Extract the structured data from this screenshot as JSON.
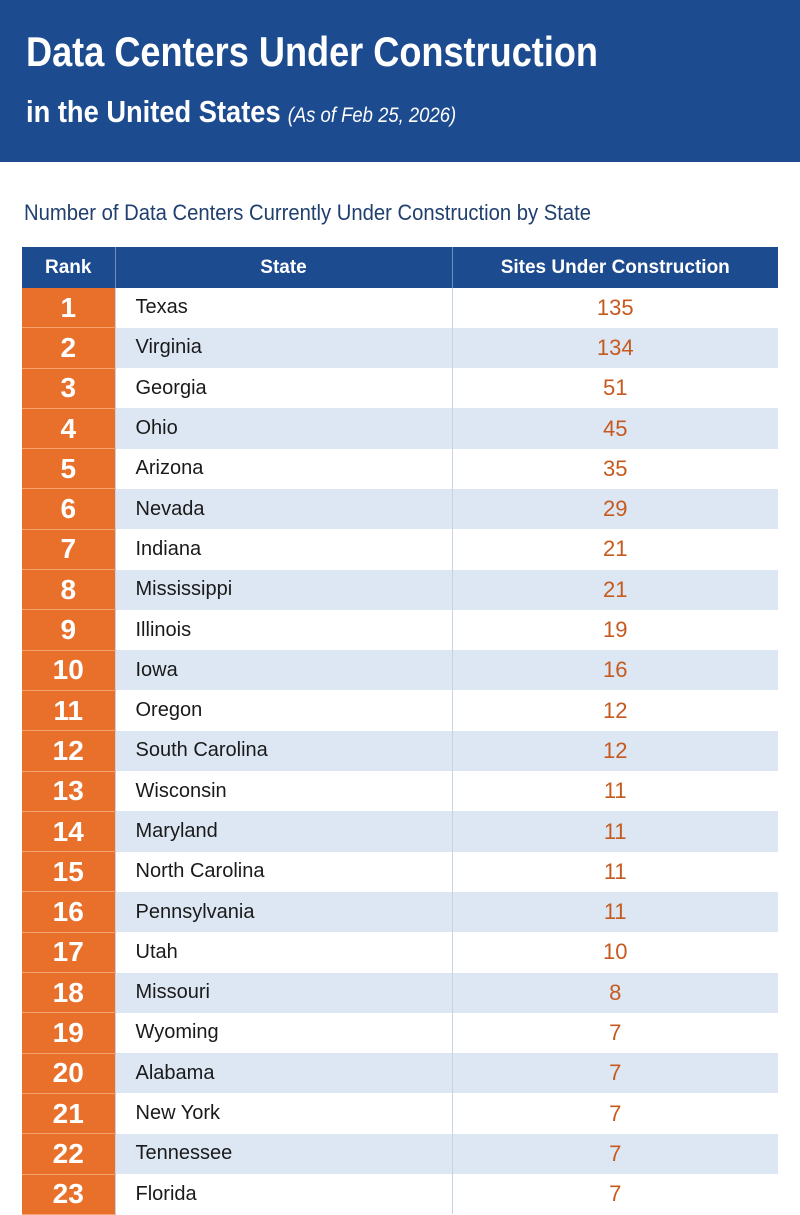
{
  "header": {
    "title": "Data Centers Under Construction",
    "subtitle": "in the United States",
    "date_note": "(As of Feb 25, 2026)"
  },
  "table": {
    "caption": "Number of Data Centers Currently Under Construction by State",
    "columns": [
      "Rank",
      "State",
      "Sites Under Construction"
    ],
    "rows": [
      [
        1,
        "Texas",
        135
      ],
      [
        2,
        "Virginia",
        134
      ],
      [
        3,
        "Georgia",
        51
      ],
      [
        4,
        "Ohio",
        45
      ],
      [
        5,
        "Arizona",
        35
      ],
      [
        6,
        "Nevada",
        29
      ],
      [
        7,
        "Indiana",
        21
      ],
      [
        8,
        "Mississippi",
        21
      ],
      [
        9,
        "Illinois",
        19
      ],
      [
        10,
        "Iowa",
        16
      ],
      [
        11,
        "Oregon",
        12
      ],
      [
        12,
        "South Carolina",
        12
      ],
      [
        13,
        "Wisconsin",
        11
      ],
      [
        14,
        "Maryland",
        11
      ],
      [
        15,
        "North Carolina",
        11
      ],
      [
        16,
        "Pennsylvania",
        11
      ],
      [
        17,
        "Utah",
        10
      ],
      [
        18,
        "Missouri",
        8
      ],
      [
        19,
        "Wyoming",
        7
      ],
      [
        20,
        "Alabama",
        7
      ],
      [
        21,
        "New York",
        7
      ],
      [
        22,
        "Tennessee",
        7
      ],
      [
        23,
        "Florida",
        7
      ]
    ]
  }
}
